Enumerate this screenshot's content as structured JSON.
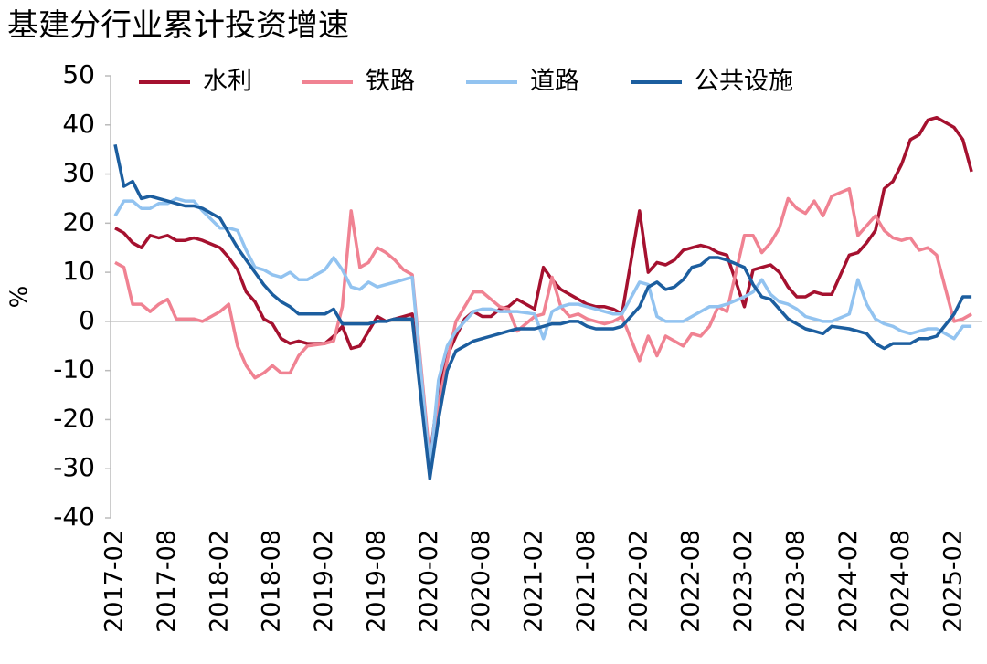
{
  "chart_data": {
    "type": "line",
    "title": "基建分行业累计投资增速",
    "ylabel": "%",
    "x": [
      "2017-02",
      "2017-03",
      "2017-04",
      "2017-05",
      "2017-06",
      "2017-07",
      "2017-08",
      "2017-09",
      "2017-10",
      "2017-11",
      "2017-12",
      "2018-02",
      "2018-03",
      "2018-04",
      "2018-05",
      "2018-06",
      "2018-07",
      "2018-08",
      "2018-09",
      "2018-10",
      "2018-11",
      "2018-12",
      "2019-02",
      "2019-03",
      "2019-04",
      "2019-05",
      "2019-06",
      "2019-07",
      "2019-08",
      "2019-09",
      "2019-10",
      "2019-11",
      "2019-12",
      "2020-02",
      "2020-03",
      "2020-04",
      "2020-05",
      "2020-06",
      "2020-07",
      "2020-08",
      "2020-09",
      "2020-10",
      "2020-11",
      "2020-12",
      "2021-02",
      "2021-03",
      "2021-04",
      "2021-05",
      "2021-06",
      "2021-07",
      "2021-08",
      "2021-09",
      "2021-10",
      "2021-11",
      "2021-12",
      "2022-02",
      "2022-03",
      "2022-04",
      "2022-05",
      "2022-06",
      "2022-07",
      "2022-08",
      "2022-09",
      "2022-10",
      "2022-11",
      "2022-12",
      "2023-02",
      "2023-03",
      "2023-04",
      "2023-05",
      "2023-06",
      "2023-07",
      "2023-08",
      "2023-09",
      "2023-10",
      "2023-11",
      "2023-12",
      "2024-02",
      "2024-03",
      "2024-04",
      "2024-05",
      "2024-06",
      "2024-07",
      "2024-08",
      "2024-09",
      "2024-10",
      "2024-11",
      "2024-12",
      "2025-02",
      "2025-03",
      "2025-04"
    ],
    "series": [
      {
        "name": "水利",
        "color": "#a5112f",
        "values": [
          19,
          18,
          16,
          15,
          17.5,
          17,
          17.5,
          16.5,
          16.5,
          17,
          16.5,
          15,
          13,
          10.5,
          6,
          4,
          0.5,
          -0.5,
          -3.5,
          -4.5,
          -4,
          -4.5,
          -4.5,
          -3,
          -1,
          -5.5,
          -5,
          -2,
          1,
          0,
          0.5,
          1,
          1.5,
          -28,
          -14,
          -7,
          -3,
          0.5,
          2,
          1,
          1,
          2.5,
          3,
          4.5,
          2.5,
          11,
          8.5,
          6.5,
          5.5,
          4.5,
          3.5,
          3,
          3,
          2.5,
          1.5,
          22.5,
          10,
          12,
          11.5,
          12.5,
          14.5,
          15,
          15.5,
          15,
          14,
          13.5,
          3,
          10.5,
          11,
          11.5,
          10,
          7,
          5,
          5,
          6,
          5.5,
          5.5,
          13.5,
          14,
          16,
          18.5,
          27,
          28.5,
          32,
          37,
          38,
          41,
          41.5,
          39.5,
          37,
          30.5
        ]
      },
      {
        "name": "铁路",
        "color": "#f08292",
        "values": [
          12,
          11,
          3.5,
          3.5,
          2,
          3.5,
          4.5,
          0.5,
          0.5,
          0.5,
          0,
          2,
          3.5,
          -5,
          -9,
          -11.5,
          -10.5,
          -9,
          -10.5,
          -10.5,
          -7,
          -5,
          -4.5,
          -4,
          3,
          22.5,
          11,
          12,
          15,
          14,
          12.5,
          10.5,
          9.5,
          -28,
          -17,
          -8,
          0,
          3,
          6,
          6,
          4.5,
          3,
          2.5,
          -2,
          1,
          1.5,
          9,
          3,
          1,
          1.5,
          0.5,
          0,
          -0.5,
          0,
          1,
          -8,
          -3,
          -7,
          -3,
          -4,
          -5,
          -2.5,
          -3,
          -1,
          3,
          2,
          17.5,
          17.5,
          14,
          16,
          19,
          25,
          23,
          22,
          24.5,
          21.5,
          25.5,
          27,
          17.5,
          19.5,
          21.5,
          18.5,
          17,
          16.5,
          17,
          14.5,
          15,
          13.5,
          0,
          0.5,
          1.5
        ]
      },
      {
        "name": "道路",
        "color": "#92c3f0",
        "values": [
          21.5,
          24.5,
          24.5,
          23,
          23,
          24,
          24,
          25,
          24.5,
          24.5,
          22.5,
          19,
          19,
          18.5,
          14.5,
          11,
          10.5,
          9.5,
          9,
          10,
          8.5,
          8.5,
          10.5,
          13,
          10.5,
          7,
          6.5,
          8,
          7,
          7.5,
          8,
          8.5,
          9,
          -30,
          -12,
          -5,
          -2,
          0,
          2,
          2.5,
          2.5,
          2,
          2,
          2,
          1.5,
          -3.5,
          2,
          3,
          3.5,
          3.5,
          3,
          2.5,
          2,
          1.5,
          1.5,
          8,
          7.5,
          1,
          0,
          0,
          0,
          1,
          2,
          3,
          3,
          3.5,
          5,
          6,
          8.5,
          5.5,
          4,
          3.5,
          2.5,
          1,
          0.5,
          0,
          0,
          1.5,
          8.5,
          3.5,
          0.5,
          -0.5,
          -1,
          -2,
          -2.5,
          -2,
          -1.5,
          -1.5,
          -3.5,
          -1,
          -1
        ]
      },
      {
        "name": "公共设施",
        "color": "#1c5e9f",
        "values": [
          36,
          27.5,
          28.5,
          25,
          25.5,
          25,
          24.5,
          24,
          23.5,
          23.5,
          23,
          21,
          18,
          15,
          12.5,
          10,
          7.5,
          5.5,
          4,
          3,
          1.5,
          1.5,
          1.5,
          2.5,
          -0.5,
          -0.5,
          -0.5,
          -0.5,
          0,
          0,
          0.5,
          0.5,
          0.5,
          -32,
          -20,
          -10,
          -6,
          -5,
          -4,
          -3.5,
          -3,
          -2.5,
          -2,
          -1.5,
          -1.5,
          -1,
          -0.5,
          -0.5,
          0,
          0,
          -1,
          -1.5,
          -1.5,
          -1.5,
          -1,
          3,
          7,
          8,
          6.5,
          7,
          8.5,
          11,
          11.5,
          13,
          13,
          12.5,
          11,
          7.5,
          5,
          4.5,
          2.5,
          0.5,
          -0.5,
          -1.5,
          -2,
          -2.5,
          -1,
          -1.5,
          -2,
          -2.5,
          -4.5,
          -5.5,
          -4.5,
          -4.5,
          -4.5,
          -3.5,
          -3.5,
          -3,
          1.5,
          5,
          5
        ]
      }
    ],
    "xticks": [
      "2017-02",
      "2017-08",
      "2018-02",
      "2018-08",
      "2019-02",
      "2019-08",
      "2020-02",
      "2020-08",
      "2021-02",
      "2021-08",
      "2022-02",
      "2022-08",
      "2023-02",
      "2023-08",
      "2024-02",
      "2024-08",
      "2025-02"
    ],
    "ylim": [
      -40,
      50
    ],
    "yticks": [
      -40,
      -30,
      -20,
      -10,
      0,
      10,
      20,
      30,
      40,
      50
    ],
    "legend": "top"
  }
}
